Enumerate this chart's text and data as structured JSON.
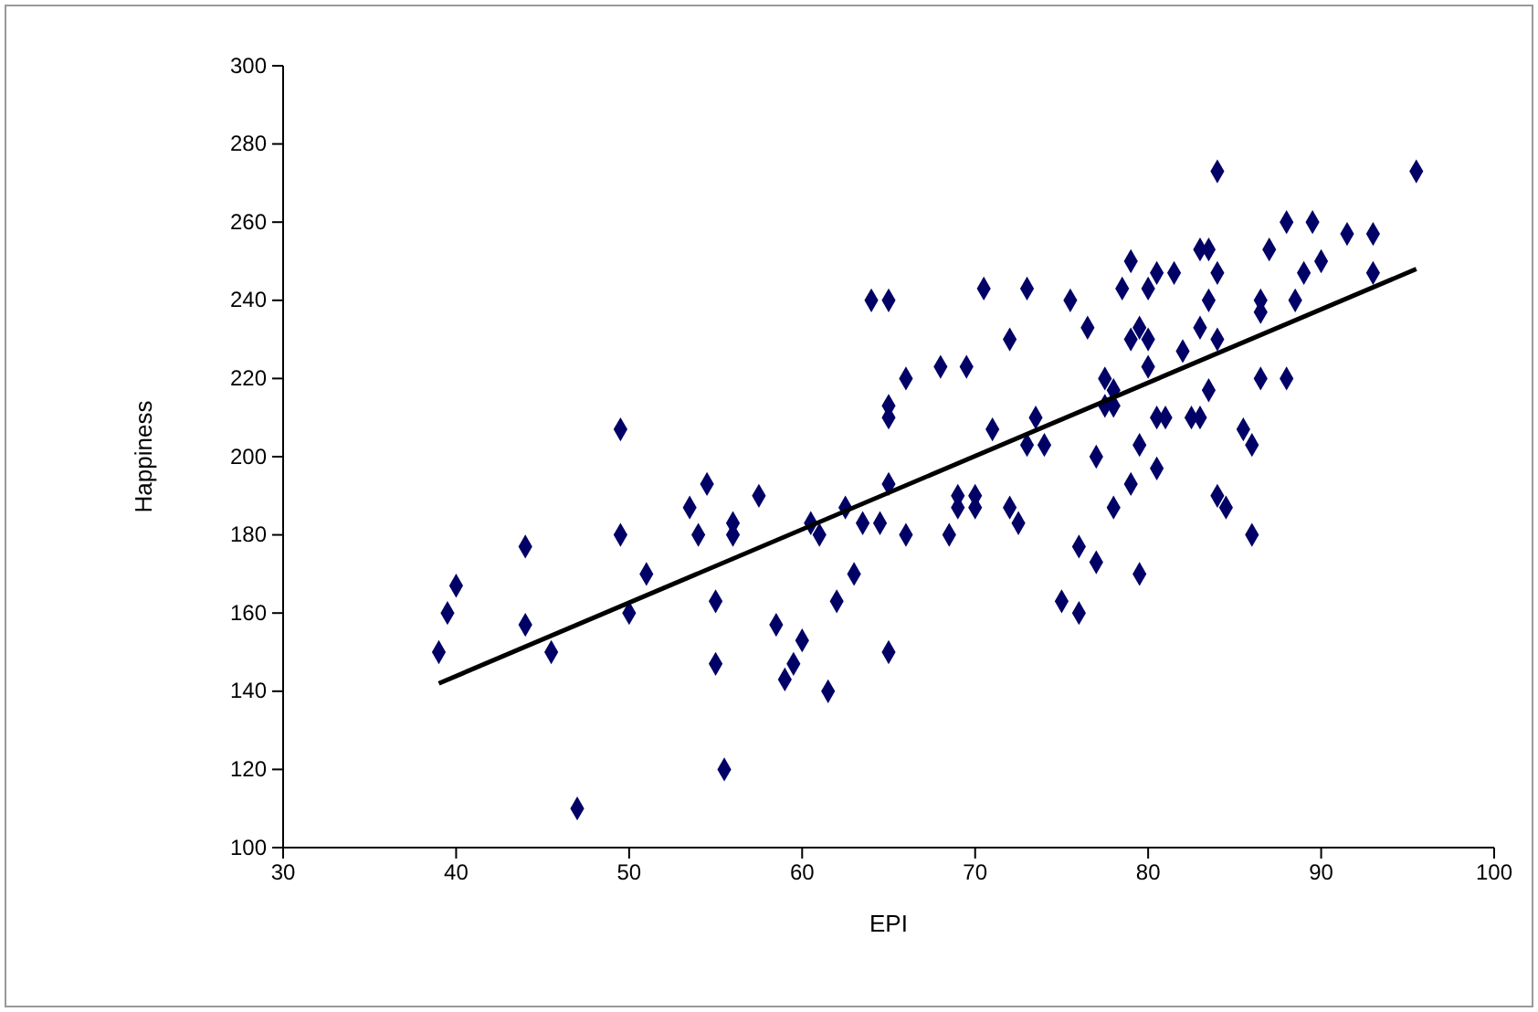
{
  "chart_data": {
    "type": "scatter",
    "xlabel": "EPI",
    "ylabel": "Happiness",
    "xlim": [
      30,
      100
    ],
    "ylim": [
      100,
      300
    ],
    "xticks": [
      30,
      40,
      50,
      60,
      70,
      80,
      90,
      100
    ],
    "yticks": [
      100,
      120,
      140,
      160,
      180,
      200,
      220,
      240,
      260,
      280,
      300
    ],
    "grid": false,
    "marker": "diamond",
    "series": [
      {
        "color": "#000066",
        "x": [
          39,
          39.5,
          40,
          44,
          44,
          45.5,
          47,
          49.5,
          49.5,
          50,
          51,
          53.5,
          54,
          54.5,
          55,
          55,
          55.5,
          56,
          56,
          57.5,
          58.5,
          59,
          59.5,
          60,
          60.5,
          61,
          61.5,
          62,
          62.5,
          63,
          63.5,
          64,
          64.5,
          65,
          65,
          65,
          65,
          65,
          66,
          66,
          68,
          68.5,
          69,
          69,
          69.5,
          70,
          70,
          70.5,
          71,
          72,
          72,
          72.5,
          73,
          73,
          73.5,
          74,
          75,
          75.5,
          76,
          76,
          76.5,
          77,
          77,
          77.5,
          77.5,
          78,
          78,
          78,
          78.5,
          79,
          79,
          79,
          79.5,
          79.5,
          79.5,
          80,
          80,
          80,
          80.5,
          80.5,
          80.5,
          81,
          81.5,
          82,
          82.5,
          83,
          83,
          83,
          83.5,
          83.5,
          83.5,
          84,
          84,
          84,
          84,
          84.5,
          85.5,
          86,
          86,
          86.5,
          86.5,
          86.5,
          87,
          88,
          88,
          88.5,
          89,
          89.5,
          90,
          91.5,
          93,
          93,
          95.5
        ],
        "values": [
          150,
          160,
          167,
          177,
          157,
          150,
          110,
          207,
          180,
          160,
          170,
          187,
          180,
          193,
          163,
          147,
          120,
          183,
          180,
          190,
          157,
          143,
          147,
          153,
          183,
          180,
          140,
          163,
          187,
          170,
          183,
          240,
          183,
          240,
          213,
          210,
          193,
          150,
          220,
          180,
          223,
          180,
          190,
          187,
          223,
          190,
          187,
          243,
          207,
          230,
          187,
          183,
          243,
          203,
          210,
          203,
          163,
          240,
          177,
          160,
          233,
          200,
          173,
          220,
          213,
          217,
          213,
          187,
          243,
          250,
          230,
          193,
          233,
          203,
          170,
          243,
          230,
          223,
          247,
          210,
          197,
          210,
          247,
          227,
          210,
          253,
          233,
          210,
          253,
          240,
          217,
          230,
          273,
          247,
          190,
          187,
          207,
          203,
          180,
          240,
          237,
          220,
          253,
          260,
          220,
          240,
          247,
          260,
          250,
          257,
          257,
          247,
          273
        ]
      },
      {
        "type": "line",
        "color": "#000000",
        "marker": "none",
        "line_style": "solid",
        "x": [
          39,
          95.5
        ],
        "values": [
          142,
          248
        ]
      }
    ]
  }
}
